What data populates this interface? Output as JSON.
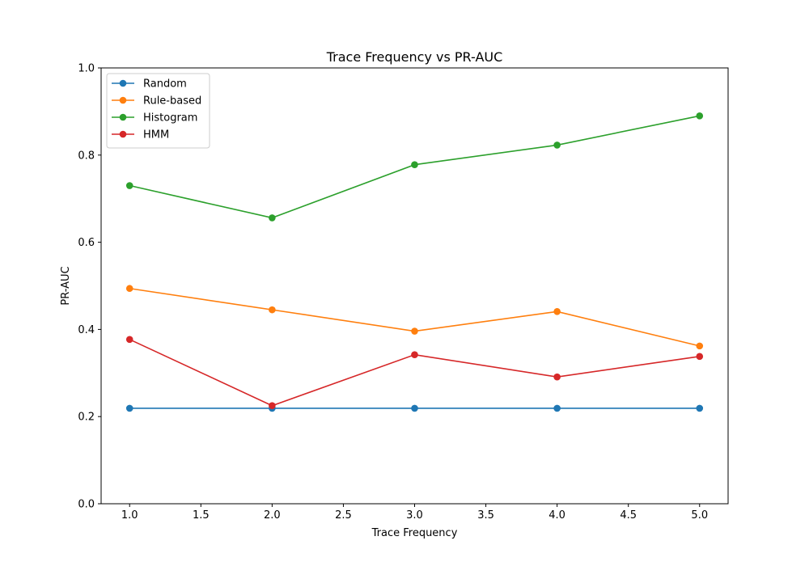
{
  "chart_data": {
    "type": "line",
    "title": "Trace Frequency vs PR-AUC",
    "xlabel": "Trace Frequency",
    "ylabel": "PR-AUC",
    "xlim": [
      0.8,
      5.2
    ],
    "ylim": [
      0.0,
      1.0
    ],
    "x": [
      1.0,
      2.0,
      3.0,
      4.0,
      5.0
    ],
    "xticks": [
      1.0,
      1.5,
      2.0,
      2.5,
      3.0,
      3.5,
      4.0,
      4.5,
      5.0
    ],
    "xtick_labels": [
      "1.0",
      "1.5",
      "2.0",
      "2.5",
      "3.0",
      "3.5",
      "4.0",
      "4.5",
      "5.0"
    ],
    "yticks": [
      0.0,
      0.2,
      0.4,
      0.6,
      0.8,
      1.0
    ],
    "ytick_labels": [
      "0.0",
      "0.2",
      "0.4",
      "0.6",
      "0.8",
      "1.0"
    ],
    "grid": false,
    "legend_position": "top-left",
    "series": [
      {
        "name": "Random",
        "color": "#1f77b4",
        "values": [
          0.219,
          0.219,
          0.219,
          0.219,
          0.219
        ]
      },
      {
        "name": "Rule-based",
        "color": "#ff7f0e",
        "values": [
          0.494,
          0.445,
          0.396,
          0.441,
          0.362
        ]
      },
      {
        "name": "Histogram",
        "color": "#2ca02c",
        "values": [
          0.73,
          0.656,
          0.778,
          0.823,
          0.89
        ]
      },
      {
        "name": "HMM",
        "color": "#d62728",
        "values": [
          0.377,
          0.225,
          0.342,
          0.291,
          0.338
        ]
      }
    ]
  }
}
